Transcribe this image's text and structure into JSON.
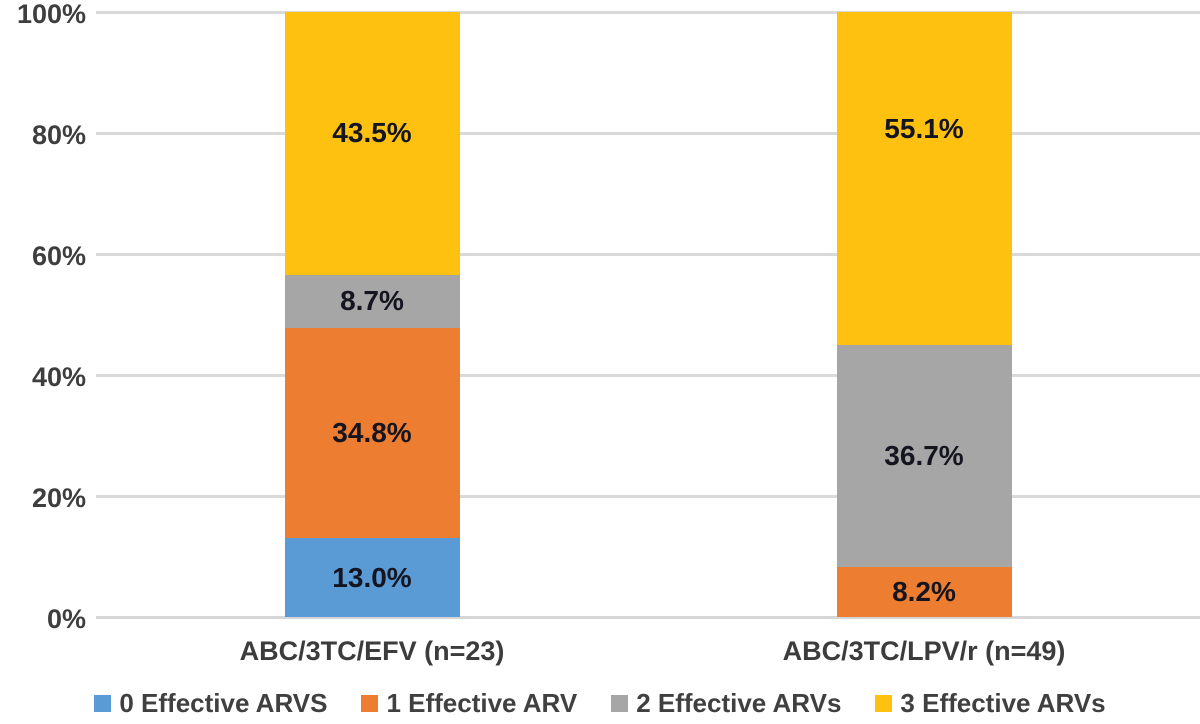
{
  "chart_data": {
    "type": "bar",
    "subtype": "stacked-100-percent",
    "title": "",
    "xlabel": "",
    "ylabel": "",
    "categories": [
      "ABC/3TC/EFV (n=23)",
      "ABC/3TC/LPV/r (n=49)"
    ],
    "series": [
      {
        "name": "0 Effective ARVS",
        "color": "#5B9BD5",
        "values": [
          13.0,
          0
        ]
      },
      {
        "name": "1 Effective ARV",
        "color": "#ED7D31",
        "values": [
          34.8,
          8.2
        ]
      },
      {
        "name": "2 Effective ARVs",
        "color": "#A6A6A6",
        "values": [
          8.7,
          36.7
        ]
      },
      {
        "name": "3 Effective ARVs",
        "color": "#FFC110",
        "values": [
          43.5,
          55.1
        ],
        "label_at_pct": [
          80.0,
          80.6
        ]
      }
    ],
    "data_labels": {
      "shown": true,
      "suffix": "%",
      "decimals": 1
    },
    "yticks": [
      "0%",
      "20%",
      "40%",
      "60%",
      "80%",
      "100%"
    ],
    "ylim": [
      0,
      100
    ],
    "grid": "horizontal",
    "legend_position": "bottom",
    "colors": {
      "background": "#FFFFFF",
      "gridline": "#D9D9D9",
      "baseline": "#D6D6D6",
      "tick_text": "#3E3E3E",
      "category_text": "#3C3C3C",
      "legend_text": "#404040",
      "data_label_text": "#15151F"
    }
  }
}
